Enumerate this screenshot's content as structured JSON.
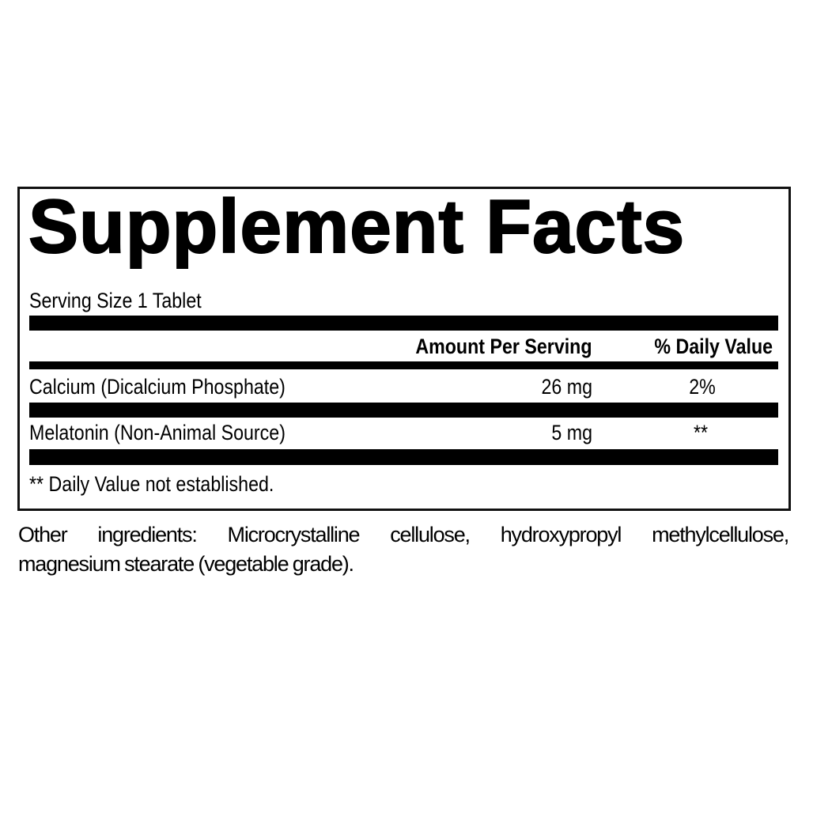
{
  "title": "Supplement Facts",
  "serving_size": "Serving Size 1 Tablet",
  "headers": {
    "amount": "Amount Per Serving",
    "daily_value": "% Daily Value"
  },
  "rows": [
    {
      "name": "Calcium (Dicalcium Phosphate)",
      "amount": "26 mg",
      "daily_value": "2%"
    },
    {
      "name": "Melatonin (Non-Animal Source)",
      "amount": "5 mg",
      "daily_value": "**"
    }
  ],
  "footnote": "** Daily Value not established.",
  "other_ingredients": {
    "line1": "Other ingredients: Microcrystalline cellulose, hydroxypropyl methylcellulose,",
    "line2": "magnesium stearate (vegetable grade)."
  }
}
